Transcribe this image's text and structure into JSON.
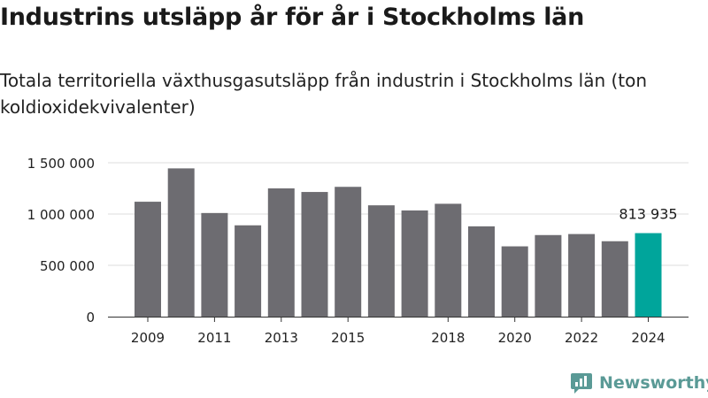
{
  "header": {
    "title": "Industrins utsläpp år för år i Stockholms län",
    "subtitle": "Totala territoriella växthusgasutsläpp från industrin i Stockholms län (ton koldioxidekvivalenter)"
  },
  "brand": {
    "name": "Newsworthy",
    "color": "#5a9a96"
  },
  "chart_data": {
    "type": "bar",
    "categories": [
      "2009",
      "2010",
      "2011",
      "2012",
      "2013",
      "2014",
      "2015",
      "2016",
      "2017",
      "2018",
      "2019",
      "2020",
      "2021",
      "2022",
      "2023",
      "2024"
    ],
    "x_tick_labels": [
      "2009",
      "",
      "2011",
      "",
      "2013",
      "",
      "2015",
      "",
      "",
      "2018",
      "",
      "2020",
      "",
      "2022",
      "",
      "2024"
    ],
    "values": [
      1120000,
      1445000,
      1010000,
      890000,
      1250000,
      1215000,
      1265000,
      1085000,
      1035000,
      1100000,
      880000,
      685000,
      795000,
      805000,
      735000,
      813935
    ],
    "ylim": [
      0,
      1500000
    ],
    "yticks": [
      0,
      500000,
      1000000,
      1500000
    ],
    "ytick_labels": [
      "0",
      "500 000",
      "1 000 000",
      "1 500 000"
    ],
    "highlight_index": 15,
    "highlight_label": "813 935",
    "colors": {
      "bar": "#6d6c71",
      "highlight": "#00a59b",
      "grid": "#dddddd",
      "axis": "#333333"
    },
    "grid": true,
    "legend": "none"
  }
}
